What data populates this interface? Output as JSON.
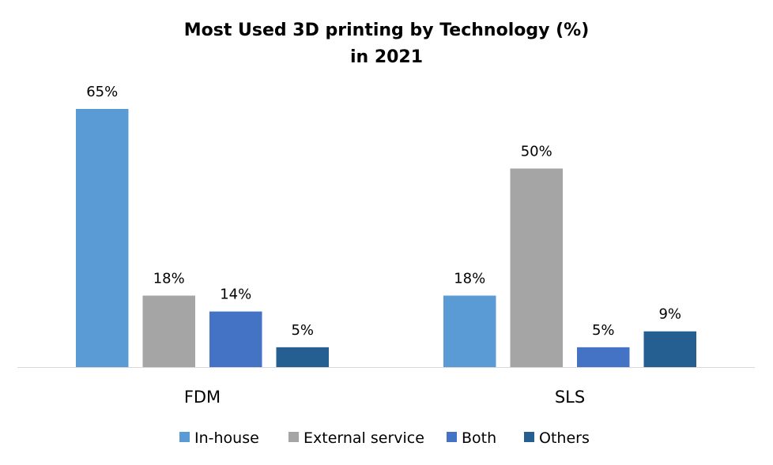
{
  "chart_data": {
    "type": "bar",
    "title": "Most Used 3D printing by Technology (%)",
    "subtitle": "in 2021",
    "xlabel": "",
    "ylabel": "",
    "categories": [
      "FDM",
      "SLS"
    ],
    "series": [
      {
        "name": "In-house",
        "color": "#5B9BD5",
        "values": [
          65,
          18
        ],
        "labels": [
          "65%",
          "18%"
        ]
      },
      {
        "name": "External service",
        "color": "#A5A5A5",
        "values": [
          18,
          50
        ],
        "labels": [
          "18%",
          "50%"
        ]
      },
      {
        "name": "Both",
        "color": "#4472C4",
        "values": [
          14,
          5
        ],
        "labels": [
          "14%",
          "5%"
        ]
      },
      {
        "name": "Others",
        "color": "#255E91",
        "values": [
          5,
          9
        ],
        "labels": [
          "5%",
          "9%"
        ]
      }
    ],
    "ylim": [
      0,
      65
    ],
    "grid": false,
    "legend_position": "bottom"
  }
}
